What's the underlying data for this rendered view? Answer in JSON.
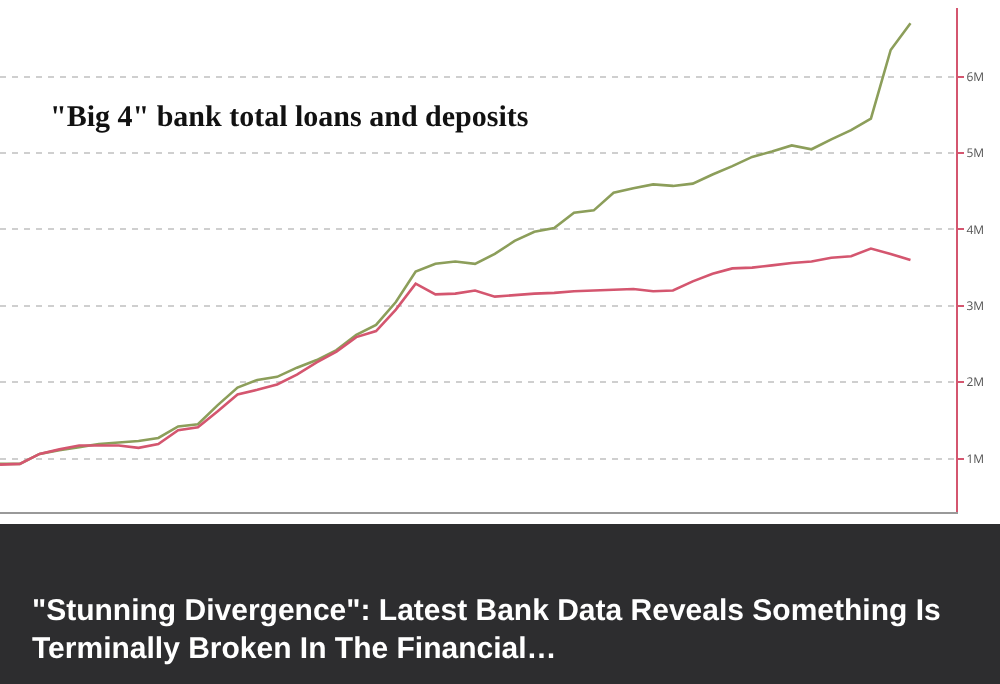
{
  "chart_data": {
    "type": "line",
    "title": "\"Big 4\" bank total loans and deposits",
    "annotations": [
      "\"Stunning Divergence\": Latest Bank Data Reveals Something Is Terminally Broken In The Financial…"
    ],
    "categories": [
      null,
      null,
      null,
      null,
      null,
      null,
      null,
      null,
      null,
      null,
      null,
      null,
      null,
      null,
      null,
      null,
      null,
      null,
      null,
      null,
      null,
      null,
      null,
      null,
      null,
      null,
      null,
      null,
      null,
      null,
      null,
      null,
      null,
      null,
      null,
      null,
      null,
      null,
      null,
      null,
      null,
      null,
      null,
      null,
      null,
      null,
      null
    ],
    "series": [
      {
        "color": "#8c9e5a",
        "values": [
          0.93,
          0.93,
          1.06,
          1.11,
          1.15,
          1.19,
          1.21,
          1.23,
          1.27,
          1.42,
          1.45,
          1.7,
          1.93,
          2.03,
          2.07,
          2.19,
          2.29,
          2.42,
          2.62,
          2.75,
          3.05,
          3.45,
          3.55,
          3.58,
          3.55,
          3.68,
          3.85,
          3.97,
          4.02,
          4.22,
          4.25,
          4.48,
          4.54,
          4.59,
          4.57,
          4.6,
          4.72,
          4.83,
          4.95,
          5.02,
          5.1,
          5.05,
          5.18,
          5.3,
          5.45,
          6.35,
          6.7
        ]
      },
      {
        "color": "#d4566f",
        "values": [
          0.92,
          0.93,
          1.06,
          1.12,
          1.17,
          1.17,
          1.17,
          1.14,
          1.19,
          1.37,
          1.41,
          1.62,
          1.84,
          1.9,
          1.97,
          2.1,
          2.26,
          2.4,
          2.59,
          2.67,
          2.95,
          3.29,
          3.15,
          3.16,
          3.2,
          3.12,
          3.14,
          3.16,
          3.17,
          3.19,
          3.2,
          3.21,
          3.22,
          3.19,
          3.2,
          3.32,
          3.42,
          3.49,
          3.5,
          3.53,
          3.56,
          3.58,
          3.63,
          3.65,
          3.75,
          3.68,
          3.6
        ]
      }
    ],
    "ylim": [
      0.3,
      6.9
    ],
    "yticks": [
      {
        "value": 1,
        "label": "1M"
      },
      {
        "value": 2,
        "label": "2M"
      },
      {
        "value": 3,
        "label": "3M"
      },
      {
        "value": 4,
        "label": "4M"
      },
      {
        "value": 5,
        "label": "5M"
      },
      {
        "value": 6,
        "label": "6M"
      }
    ],
    "grid": true,
    "tick_labels": "y",
    "marker": "none",
    "line_style": "solid"
  }
}
